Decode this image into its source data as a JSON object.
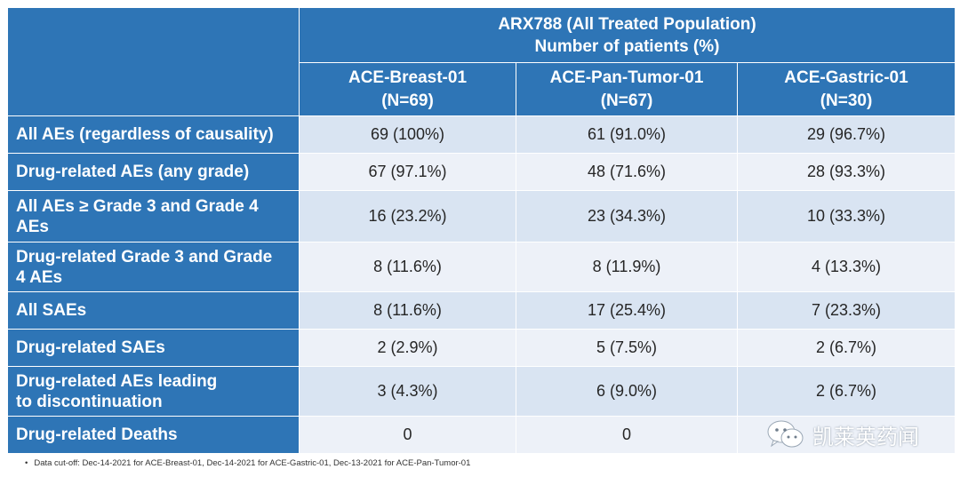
{
  "table": {
    "group_header": {
      "line1": "ARX788 (All Treated Population)",
      "line2": "Number of patients (%)"
    },
    "columns": [
      {
        "name": "ACE-Breast-01",
        "n": "(N=69)"
      },
      {
        "name": "ACE-Pan-Tumor-01",
        "n": "(N=67)"
      },
      {
        "name": "ACE-Gastric-01",
        "n": "(N=30)"
      }
    ],
    "rows": [
      {
        "label_lines": [
          "All AEs (regardless of causality)"
        ],
        "values": [
          "69 (100%)",
          "61 (91.0%)",
          "29 (96.7%)"
        ]
      },
      {
        "label_lines": [
          "Drug-related AEs (any grade)"
        ],
        "values": [
          "67 (97.1%)",
          "48 (71.6%)",
          "28 (93.3%)"
        ]
      },
      {
        "label_lines": [
          "All AEs ≥ Grade 3 and Grade 4",
          "AEs"
        ],
        "values": [
          "16 (23.2%)",
          "23 (34.3%)",
          "10 (33.3%)"
        ]
      },
      {
        "label_lines": [
          "Drug-related Grade 3  and Grade",
          "4 AEs"
        ],
        "values": [
          "8 (11.6%)",
          "8 (11.9%)",
          "4 (13.3%)"
        ]
      },
      {
        "label_lines": [
          "All SAEs"
        ],
        "values": [
          "8 (11.6%)",
          "17 (25.4%)",
          "7 (23.3%)"
        ]
      },
      {
        "label_lines": [
          "Drug-related SAEs"
        ],
        "values": [
          "2 (2.9%)",
          "5 (7.5%)",
          "2 (6.7%)"
        ]
      },
      {
        "label_lines": [
          "Drug-related AEs leading",
          "to discontinuation"
        ],
        "values": [
          "3 (4.3%)",
          "6 (9.0%)",
          "2 (6.7%)"
        ]
      },
      {
        "label_lines": [
          "Drug-related Deaths"
        ],
        "values": [
          "0",
          "0",
          ""
        ]
      }
    ]
  },
  "footnote": "Data cut-off: Dec-14-2021 for ACE-Breast-01, Dec-14-2021 for ACE-Gastric-01, Dec-13-2021 for ACE-Pan-Tumor-01",
  "watermark": {
    "text": "凯莱英药闻",
    "icon": "wechat-icon"
  },
  "colors": {
    "header_blue": "#2e75b6",
    "row_light": "#d9e4f2",
    "row_lighter": "#edf1f8",
    "text_dark": "#262626"
  }
}
